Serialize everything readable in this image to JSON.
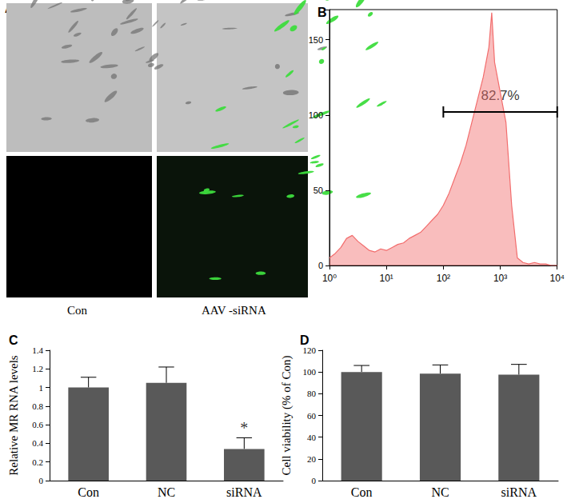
{
  "panel_a": {
    "title": "A",
    "captions": [
      "Con",
      "AAV -siRNA"
    ]
  },
  "chart_data": [
    {
      "type": "line",
      "title": "B",
      "x": [
        1,
        1.259,
        1.585,
        1.995,
        2.512,
        3.162,
        3.981,
        5.012,
        6.31,
        7.943,
        10,
        12.59,
        15.85,
        19.95,
        25.12,
        31.62,
        39.81,
        50.12,
        63.1,
        79.43,
        100,
        125.9,
        158.5,
        199.5,
        251.2,
        316.2,
        398.1,
        501.2,
        631,
        707.9,
        794.3,
        1000,
        1259,
        1585,
        1995,
        2512,
        3162,
        3981,
        5012,
        6310,
        7943,
        10000
      ],
      "values": [
        5,
        8,
        12,
        18,
        20,
        16,
        13,
        10,
        9,
        11,
        10,
        12,
        14,
        15,
        18,
        20,
        22,
        26,
        30,
        34,
        40,
        48,
        58,
        68,
        80,
        95,
        110,
        125,
        145,
        168,
        135,
        115,
        95,
        40,
        5,
        2,
        1,
        2,
        1,
        1,
        0,
        0
      ],
      "color": "#f26d6d",
      "log": "x",
      "xlim": [
        1,
        10000
      ],
      "xticks": [
        {
          "value": 1,
          "label": "10⁰"
        },
        {
          "value": 10,
          "label": "10¹"
        },
        {
          "value": 100,
          "label": "10²"
        },
        {
          "value": 1000,
          "label": "10³"
        },
        {
          "value": 10000,
          "label": "10⁴"
        }
      ],
      "ylim": [
        0,
        170
      ],
      "yticks": [
        0,
        50,
        100,
        150
      ],
      "grid": false,
      "gate": {
        "range": [
          100,
          10000
        ],
        "y": 102,
        "label": "82.7%"
      }
    },
    {
      "type": "bar",
      "title": "C",
      "categories": [
        "Con",
        "NC",
        "siRNA"
      ],
      "values": [
        1.0,
        1.05,
        0.34
      ],
      "errors": [
        0.11,
        0.17,
        0.12
      ],
      "color": "#595959",
      "ylabel": "Relative MR RNA levels",
      "ylim": [
        0,
        1.4
      ],
      "yticks": [
        0,
        0.2,
        0.4,
        0.6,
        0.8,
        1,
        1.2,
        1.4
      ],
      "grid": false,
      "annotations": [
        {
          "text": "*",
          "category": "siRNA"
        }
      ]
    },
    {
      "type": "bar",
      "title": "D",
      "categories": [
        "Con",
        "NC",
        "siRNA"
      ],
      "values": [
        100,
        98.5,
        97.5
      ],
      "errors": [
        6,
        8,
        9.5
      ],
      "color": "#595959",
      "ylabel": "Cell viability (% of Con)",
      "ylim": [
        0,
        120
      ],
      "yticks": [
        0,
        20,
        40,
        60,
        80,
        100,
        120
      ],
      "grid": false
    }
  ]
}
